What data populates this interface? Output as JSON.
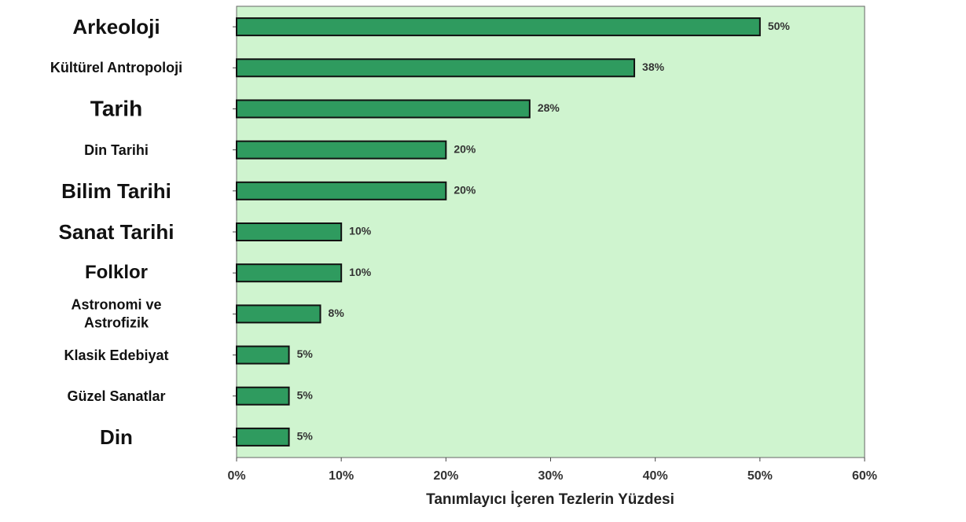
{
  "chart_data": {
    "type": "bar",
    "orientation": "horizontal",
    "x_label": "Tanımlayıcı İçeren Tezlerin Yüzdesi",
    "categories": [
      "Arkeoloji",
      "Kültürel Antropoloji",
      "Tarih",
      "Din Tarihi",
      "Bilim Tarihi",
      "Sanat Tarihi",
      "Folklor",
      "Astronomi ve\nAstrofizik",
      "Klasik Edebiyat",
      "Güzel Sanatlar",
      "Din"
    ],
    "values": [
      50,
      38,
      28,
      20,
      20,
      10,
      10,
      8,
      5,
      5,
      5
    ],
    "value_labels": [
      "50%",
      "38%",
      "28%",
      "20%",
      "20%",
      "10%",
      "10%",
      "8%",
      "5%",
      "5%",
      "5%"
    ],
    "color": "#2f9b5f",
    "background": "#cff4cf",
    "xlim": [
      0,
      60
    ],
    "xticks": [
      {
        "value": 0,
        "label": "0%"
      },
      {
        "value": 10,
        "label": "10%"
      },
      {
        "value": 20,
        "label": "20%"
      },
      {
        "value": 30,
        "label": "30%"
      },
      {
        "value": 40,
        "label": "40%"
      },
      {
        "value": 50,
        "label": "50%"
      },
      {
        "value": 60,
        "label": "60%"
      }
    ]
  }
}
